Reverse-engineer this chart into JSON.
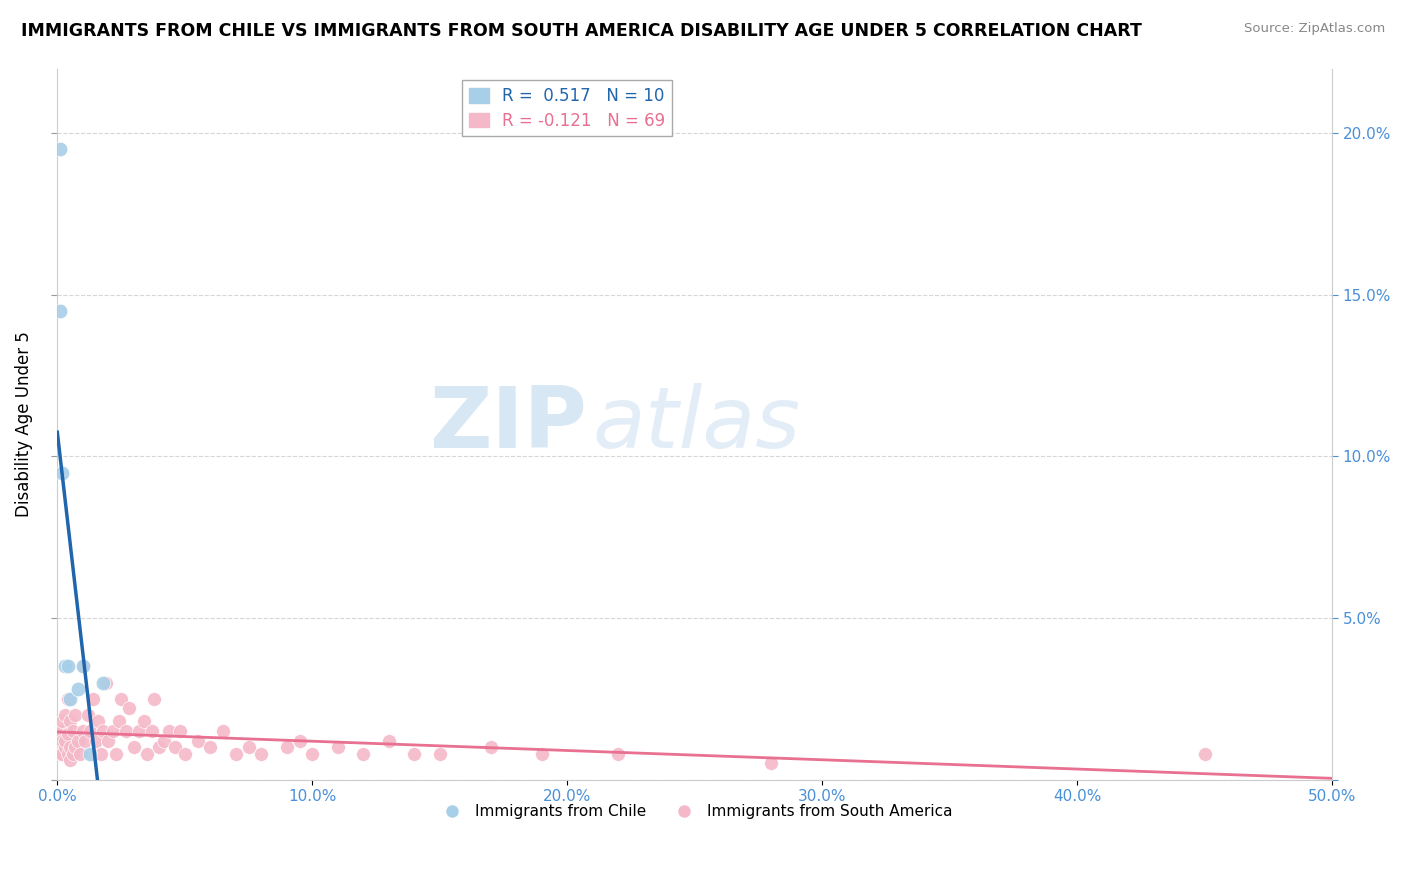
{
  "title": "IMMIGRANTS FROM CHILE VS IMMIGRANTS FROM SOUTH AMERICA DISABILITY AGE UNDER 5 CORRELATION CHART",
  "source": "Source: ZipAtlas.com",
  "ylabel": "Disability Age Under 5",
  "watermark_zip": "ZIP",
  "watermark_atlas": "atlas",
  "chile_R": 0.517,
  "chile_N": 10,
  "sa_R": -0.121,
  "sa_N": 69,
  "chile_color": "#a8cfe8",
  "sa_color": "#f4b8c8",
  "chile_line_color": "#2166ac",
  "sa_line_color": "#e87090",
  "xlim": [
    0.0,
    0.5
  ],
  "ylim": [
    0.0,
    0.22
  ],
  "plot_ylim": [
    0.0,
    0.22
  ],
  "xticks": [
    0.0,
    0.1,
    0.2,
    0.3,
    0.4,
    0.5
  ],
  "yticks": [
    0.0,
    0.05,
    0.1,
    0.15,
    0.2
  ],
  "ytick_labels_right": [
    "",
    "5.0%",
    "10.0%",
    "15.0%",
    "20.0%"
  ],
  "xtick_labels": [
    "0.0%",
    "10.0%",
    "20.0%",
    "30.0%",
    "40.0%",
    "50.0%"
  ],
  "chile_x": [
    0.001,
    0.001,
    0.002,
    0.003,
    0.004,
    0.005,
    0.008,
    0.01,
    0.013,
    0.018
  ],
  "chile_y": [
    0.195,
    0.145,
    0.095,
    0.035,
    0.035,
    0.025,
    0.028,
    0.035,
    0.008,
    0.03
  ],
  "sa_x": [
    0.001,
    0.001,
    0.002,
    0.002,
    0.002,
    0.003,
    0.003,
    0.003,
    0.004,
    0.004,
    0.004,
    0.005,
    0.005,
    0.005,
    0.006,
    0.006,
    0.007,
    0.007,
    0.008,
    0.009,
    0.01,
    0.01,
    0.011,
    0.012,
    0.013,
    0.014,
    0.015,
    0.016,
    0.017,
    0.018,
    0.019,
    0.02,
    0.022,
    0.023,
    0.024,
    0.025,
    0.027,
    0.028,
    0.03,
    0.032,
    0.034,
    0.035,
    0.037,
    0.038,
    0.04,
    0.042,
    0.044,
    0.046,
    0.048,
    0.05,
    0.055,
    0.06,
    0.065,
    0.07,
    0.075,
    0.08,
    0.09,
    0.095,
    0.1,
    0.11,
    0.12,
    0.13,
    0.14,
    0.15,
    0.17,
    0.19,
    0.22,
    0.28,
    0.45
  ],
  "sa_y": [
    0.008,
    0.015,
    0.008,
    0.012,
    0.018,
    0.01,
    0.012,
    0.02,
    0.008,
    0.014,
    0.025,
    0.006,
    0.01,
    0.018,
    0.008,
    0.015,
    0.01,
    0.02,
    0.012,
    0.008,
    0.015,
    0.035,
    0.012,
    0.02,
    0.015,
    0.025,
    0.012,
    0.018,
    0.008,
    0.015,
    0.03,
    0.012,
    0.015,
    0.008,
    0.018,
    0.025,
    0.015,
    0.022,
    0.01,
    0.015,
    0.018,
    0.008,
    0.015,
    0.025,
    0.01,
    0.012,
    0.015,
    0.01,
    0.015,
    0.008,
    0.012,
    0.01,
    0.015,
    0.008,
    0.01,
    0.008,
    0.01,
    0.012,
    0.008,
    0.01,
    0.008,
    0.012,
    0.008,
    0.008,
    0.01,
    0.008,
    0.008,
    0.005,
    0.008
  ],
  "background_color": "#ffffff",
  "grid_color": "#cccccc",
  "tick_color": "#4a90d9"
}
